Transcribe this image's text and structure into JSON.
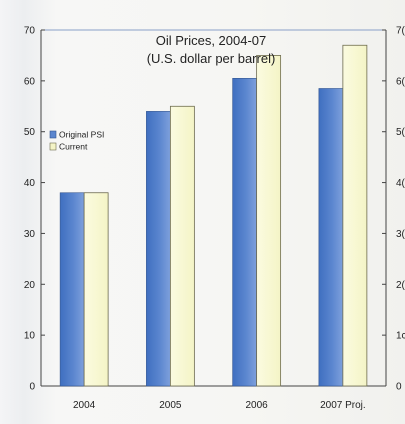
{
  "chart_data": {
    "type": "bar",
    "title": "Oil Prices, 2004-07",
    "subtitle": "(U.S. dollar per barrel)",
    "categories": [
      "2004",
      "2005",
      "2006",
      "2007 Proj."
    ],
    "series": [
      {
        "name": "Original PSI",
        "values": [
          38,
          54,
          60.5,
          58.5
        ]
      },
      {
        "name": "Current",
        "values": [
          38,
          55,
          65,
          67
        ]
      }
    ],
    "ylim": [
      0,
      70
    ],
    "yticks": [
      0,
      10,
      20,
      30,
      40,
      50,
      60,
      70
    ],
    "right_ticks": [
      "0",
      "1c",
      "2(",
      "3(",
      "4(",
      "5(",
      "6(",
      "7("
    ],
    "grid": false,
    "legend_position": "left",
    "colors": {
      "Original PSI": "#5b86cf",
      "Current": "#f4f4c6"
    }
  }
}
